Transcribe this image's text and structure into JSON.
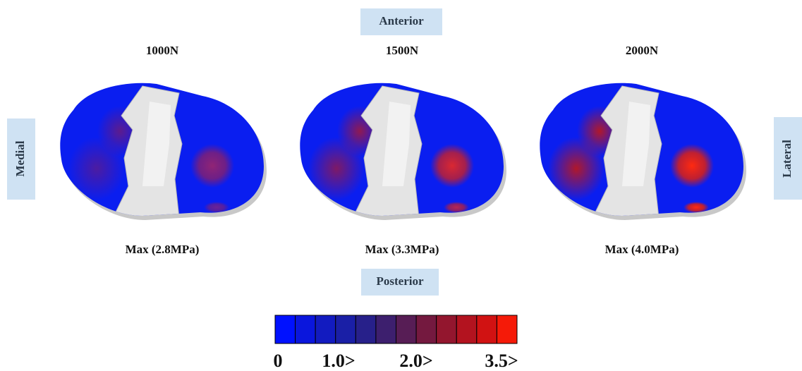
{
  "orientation": {
    "anterior": "Anterior",
    "posterior": "Posterior",
    "medial": "Medial",
    "lateral": "Lateral"
  },
  "panels": [
    {
      "load": "1000N",
      "max": "Max (2.8MPa)"
    },
    {
      "load": "1500N",
      "max": "Max (3.3MPa)"
    },
    {
      "load": "2000N",
      "max": "Max (4.0MPa)"
    }
  ],
  "colorbar": {
    "colors": [
      "#0011ff",
      "#0a16dd",
      "#121bc0",
      "#1a1fa6",
      "#27208a",
      "#3d1f6e",
      "#571d55",
      "#74193f",
      "#93162e",
      "#b3131f",
      "#d11212",
      "#f51a08"
    ],
    "labels": [
      "0",
      "1.0>",
      "2.0>",
      "3.5>"
    ]
  }
}
